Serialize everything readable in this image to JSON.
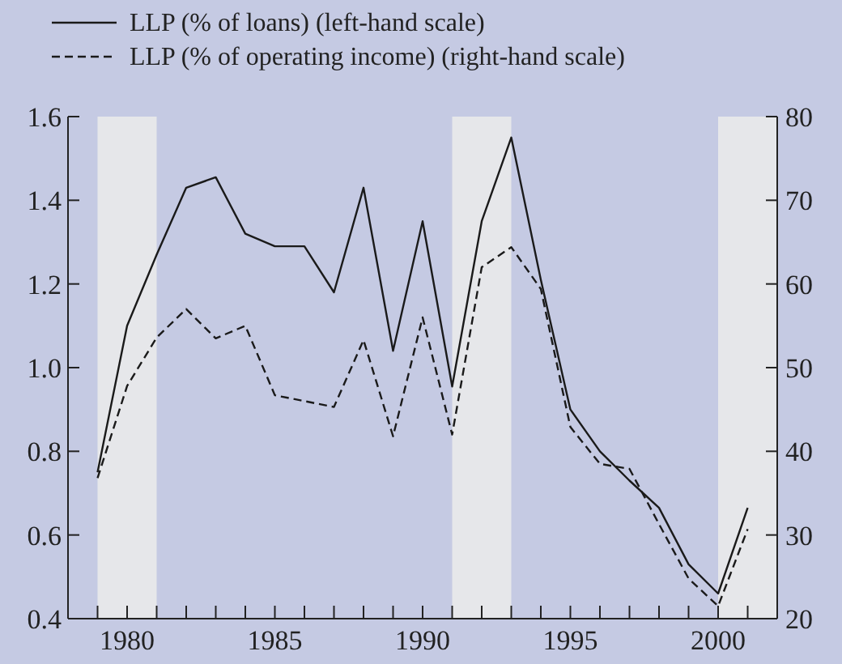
{
  "chart_data": {
    "type": "line",
    "x": [
      1979,
      1980,
      1981,
      1982,
      1983,
      1984,
      1985,
      1986,
      1987,
      1988,
      1989,
      1990,
      1991,
      1992,
      1993,
      1994,
      1995,
      1996,
      1997,
      1998,
      1999,
      2000,
      2001
    ],
    "series": [
      {
        "name": "LLP (% of loans) (left-hand scale)",
        "color": "#1a1a1a",
        "line_style": "solid",
        "values": [
          0.75,
          1.1,
          1.27,
          1.43,
          1.455,
          1.32,
          1.29,
          1.29,
          1.18,
          1.43,
          1.04,
          1.35,
          0.955,
          1.35,
          1.55,
          1.21,
          0.9,
          0.8,
          0.73,
          0.665,
          0.53,
          0.46,
          0.665
        ]
      },
      {
        "name": "LLP (% of operating income) (right-hand scale)",
        "color": "#1a1a1a",
        "line_style": "dashed",
        "axis": "y2",
        "values": [
          36.8,
          47.8,
          53.6,
          57.0,
          53.5,
          55.0,
          46.7,
          46.0,
          45.3,
          53.3,
          41.8,
          56.0,
          42.0,
          62.0,
          64.4,
          59.4,
          42.9,
          38.5,
          37.9,
          31.3,
          24.8,
          21.5,
          30.7
        ]
      }
    ],
    "xlim": [
      1978,
      2002
    ],
    "xticks": [
      {
        "value": 1979,
        "label": null
      },
      {
        "value": 1980,
        "label": "1980"
      },
      {
        "value": 1981,
        "label": null
      },
      {
        "value": 1982,
        "label": null
      },
      {
        "value": 1983,
        "label": null
      },
      {
        "value": 1984,
        "label": null
      },
      {
        "value": 1985,
        "label": "1985"
      },
      {
        "value": 1986,
        "label": null
      },
      {
        "value": 1987,
        "label": null
      },
      {
        "value": 1988,
        "label": null
      },
      {
        "value": 1989,
        "label": null
      },
      {
        "value": 1990,
        "label": "1990"
      },
      {
        "value": 1991,
        "label": null
      },
      {
        "value": 1992,
        "label": null
      },
      {
        "value": 1993,
        "label": null
      },
      {
        "value": 1994,
        "label": null
      },
      {
        "value": 1995,
        "label": "1995"
      },
      {
        "value": 1996,
        "label": null
      },
      {
        "value": 1997,
        "label": null
      },
      {
        "value": 1998,
        "label": null
      },
      {
        "value": 1999,
        "label": null
      },
      {
        "value": 2000,
        "label": "2000"
      },
      {
        "value": 2001,
        "label": null
      }
    ],
    "ylim": [
      0.4,
      1.6
    ],
    "yticks": [
      {
        "value": 0.4,
        "label": "0.4"
      },
      {
        "value": 0.6,
        "label": "0.6"
      },
      {
        "value": 0.8,
        "label": "0.8"
      },
      {
        "value": 1.0,
        "label": "1.0"
      },
      {
        "value": 1.2,
        "label": "1.2"
      },
      {
        "value": 1.4,
        "label": "1.4"
      },
      {
        "value": 1.6,
        "label": "1.6"
      }
    ],
    "y2lim": [
      20,
      80
    ],
    "y2ticks": [
      20,
      30,
      40,
      50,
      60,
      70,
      80
    ],
    "bands": [
      {
        "axis": "x",
        "from": 1979,
        "to": 1981,
        "color": "#e6e7ea"
      },
      {
        "axis": "x",
        "from": 1991,
        "to": 1993,
        "color": "#e6e7ea"
      },
      {
        "axis": "x",
        "from": 2000,
        "to": 2002,
        "color": "#e6e7ea"
      }
    ],
    "legend": "top",
    "grid": false,
    "marker": "none"
  }
}
